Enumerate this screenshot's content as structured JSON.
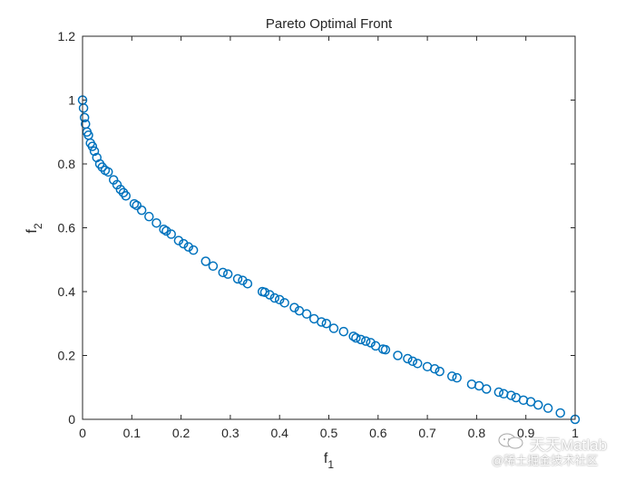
{
  "chart_data": {
    "type": "scatter",
    "title": "Pareto Optimal Front",
    "xlabel_main": "f",
    "xlabel_sub": "1",
    "ylabel_main": "f",
    "ylabel_sub": "2",
    "xlim": [
      0,
      1
    ],
    "ylim": [
      0,
      1.2
    ],
    "xticks": [
      "0",
      "0.1",
      "0.2",
      "0.3",
      "0.4",
      "0.5",
      "0.6",
      "0.7",
      "0.8",
      "0.9",
      "1"
    ],
    "yticks": [
      "0",
      "0.2",
      "0.4",
      "0.6",
      "0.8",
      "1",
      "1.2"
    ],
    "grid": false,
    "marker": "open-circle",
    "series_color": "#0072BD",
    "x": [
      0.0,
      0.002,
      0.004,
      0.006,
      0.009,
      0.012,
      0.016,
      0.02,
      0.024,
      0.029,
      0.035,
      0.04,
      0.046,
      0.052,
      0.063,
      0.07,
      0.077,
      0.083,
      0.088,
      0.105,
      0.11,
      0.12,
      0.135,
      0.15,
      0.165,
      0.17,
      0.18,
      0.195,
      0.205,
      0.215,
      0.225,
      0.25,
      0.265,
      0.285,
      0.295,
      0.315,
      0.325,
      0.335,
      0.365,
      0.37,
      0.38,
      0.39,
      0.4,
      0.41,
      0.43,
      0.44,
      0.455,
      0.47,
      0.485,
      0.495,
      0.51,
      0.53,
      0.55,
      0.555,
      0.565,
      0.575,
      0.585,
      0.595,
      0.61,
      0.615,
      0.64,
      0.66,
      0.67,
      0.68,
      0.7,
      0.715,
      0.725,
      0.75,
      0.76,
      0.79,
      0.805,
      0.82,
      0.845,
      0.855,
      0.87,
      0.88,
      0.895,
      0.91,
      0.925,
      0.945,
      0.97,
      1.0
    ],
    "y": [
      1.0,
      0.975,
      0.945,
      0.925,
      0.9,
      0.89,
      0.865,
      0.855,
      0.84,
      0.82,
      0.8,
      0.79,
      0.78,
      0.775,
      0.75,
      0.735,
      0.72,
      0.71,
      0.7,
      0.675,
      0.67,
      0.655,
      0.635,
      0.615,
      0.595,
      0.59,
      0.58,
      0.56,
      0.55,
      0.54,
      0.53,
      0.495,
      0.48,
      0.46,
      0.455,
      0.44,
      0.435,
      0.425,
      0.4,
      0.398,
      0.39,
      0.38,
      0.375,
      0.365,
      0.35,
      0.34,
      0.33,
      0.315,
      0.305,
      0.3,
      0.285,
      0.275,
      0.26,
      0.255,
      0.25,
      0.245,
      0.24,
      0.23,
      0.22,
      0.218,
      0.2,
      0.19,
      0.182,
      0.175,
      0.165,
      0.158,
      0.15,
      0.135,
      0.13,
      0.11,
      0.105,
      0.095,
      0.085,
      0.08,
      0.075,
      0.068,
      0.06,
      0.055,
      0.045,
      0.035,
      0.02,
      0.0
    ]
  },
  "watermark": {
    "line1": "天天Matlab",
    "line2": "@稀土掘金技术社区"
  }
}
